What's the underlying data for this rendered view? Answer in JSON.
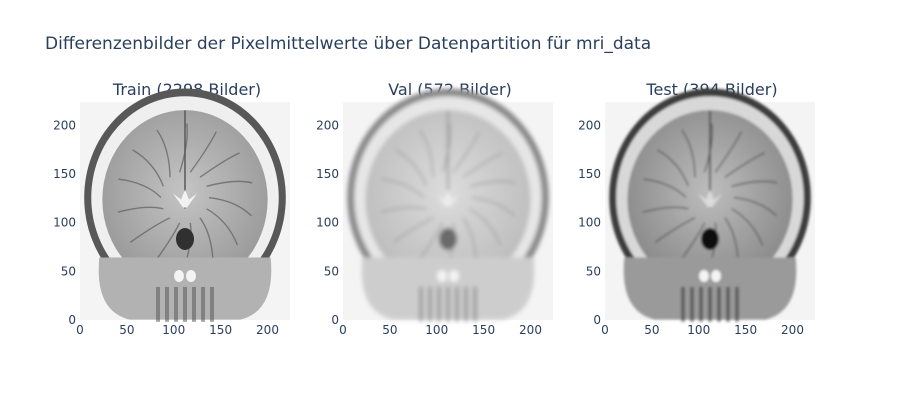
{
  "chart_data": {
    "type": "heatmap",
    "title": "Differenzenbilder der Pixelmittelwerte über Datenpartition für mri_data",
    "colorscale": [
      "#000000",
      "#ffffff"
    ],
    "panels": [
      {
        "id": "train",
        "subtitle": "Train (2298 Bilder)",
        "xlim": [
          0,
          224
        ],
        "ylim": [
          0,
          224
        ],
        "xticks": [
          0,
          50,
          100,
          150,
          200
        ],
        "yticks": [
          0,
          50,
          100,
          150,
          200
        ],
        "style": "sharp"
      },
      {
        "id": "val",
        "subtitle": "Val (572 Bilder)",
        "xlim": [
          0,
          224
        ],
        "ylim": [
          0,
          224
        ],
        "xticks": [
          0,
          50,
          100,
          150,
          200
        ],
        "yticks": [
          0,
          50,
          100,
          150,
          200
        ],
        "style": "blurred"
      },
      {
        "id": "test",
        "subtitle": "Test (394 Bilder)",
        "xlim": [
          0,
          224
        ],
        "ylim": [
          0,
          224
        ],
        "xticks": [
          0,
          50,
          100,
          150,
          200
        ],
        "yticks": [
          0,
          50,
          100,
          150,
          200
        ],
        "style": "dark"
      }
    ]
  }
}
